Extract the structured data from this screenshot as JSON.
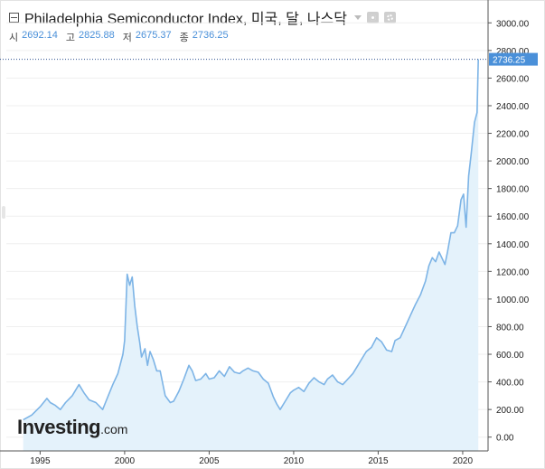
{
  "header": {
    "title": "Philadelphia Semiconductor Index, 미국, 달, 나스닥",
    "ohlc": [
      {
        "label": "시",
        "value": "2692.14"
      },
      {
        "label": "고",
        "value": "2825.88"
      },
      {
        "label": "저",
        "value": "2675.37"
      },
      {
        "label": "종",
        "value": "2736.25"
      }
    ]
  },
  "logo": {
    "main": "Investing",
    "suffix": ".com"
  },
  "colors": {
    "line": "#7db4e6",
    "fill": "#e4f2fb",
    "last_price_bg": "#4a90d9",
    "last_price_line": "#2b4f8e",
    "axis": "#555555",
    "grid": "#efefef"
  },
  "chart_data": {
    "type": "area",
    "ylim": [
      -100,
      3100
    ],
    "xlim": [
      1993,
      2021.5
    ],
    "y_ticks": [
      0,
      200,
      400,
      600,
      800,
      1000,
      1200,
      1400,
      1600,
      1800,
      2000,
      2200,
      2400,
      2600,
      2800,
      3000
    ],
    "y_tick_labels": [
      "0.00",
      "200.00",
      "400.00",
      "600.00",
      "800.00",
      "1000.00",
      "1200.00",
      "1400.00",
      "1600.00",
      "1800.00",
      "2000.00",
      "2200.00",
      "2400.00",
      "2600.00",
      "2800.00",
      "3000.00"
    ],
    "x_ticks": [
      1995,
      2000,
      2005,
      2010,
      2015,
      2020
    ],
    "x_tick_labels": [
      "1995",
      "2000",
      "2005",
      "2010",
      "2015",
      "2020"
    ],
    "last_price": 2736.25,
    "last_price_label": "2736.25",
    "series": [
      {
        "x": [
          1994.0,
          1994.5,
          1995.0,
          1995.4,
          1995.6,
          1995.9,
          1996.2,
          1996.5,
          1996.9,
          1997.3,
          1997.6,
          1997.9,
          1998.3,
          1998.7,
          1998.9,
          1999.3,
          1999.6,
          1999.9,
          2000.0,
          2000.15,
          2000.3,
          2000.45,
          2000.6,
          2000.75,
          2000.9,
          2001.0,
          2001.2,
          2001.35,
          2001.5,
          2001.7,
          2001.9,
          2002.1,
          2002.4,
          2002.7,
          2002.9,
          2003.2,
          2003.5,
          2003.8,
          2004.0,
          2004.2,
          2004.5,
          2004.8,
          2005.0,
          2005.3,
          2005.6,
          2005.9,
          2006.2,
          2006.5,
          2006.8,
          2007.0,
          2007.3,
          2007.6,
          2007.9,
          2008.2,
          2008.5,
          2008.8,
          2009.0,
          2009.2,
          2009.5,
          2009.8,
          2010.0,
          2010.3,
          2010.6,
          2010.9,
          2011.2,
          2011.5,
          2011.8,
          2012.0,
          2012.3,
          2012.6,
          2012.9,
          2013.2,
          2013.5,
          2013.8,
          2014.0,
          2014.3,
          2014.6,
          2014.9,
          2015.2,
          2015.5,
          2015.8,
          2016.0,
          2016.3,
          2016.6,
          2016.9,
          2017.2,
          2017.5,
          2017.8,
          2018.0,
          2018.2,
          2018.4,
          2018.6,
          2018.8,
          2018.95,
          2019.1,
          2019.3,
          2019.5,
          2019.7,
          2019.9,
          2020.05,
          2020.2,
          2020.35,
          2020.5,
          2020.7,
          2020.85,
          2020.92
        ],
        "y": [
          125,
          160,
          220,
          280,
          250,
          230,
          200,
          250,
          300,
          380,
          320,
          270,
          250,
          200,
          260,
          380,
          460,
          600,
          700,
          1180,
          1100,
          1160,
          950,
          800,
          680,
          580,
          640,
          520,
          620,
          560,
          480,
          480,
          300,
          250,
          260,
          330,
          420,
          520,
          480,
          410,
          420,
          460,
          420,
          430,
          480,
          440,
          510,
          470,
          460,
          480,
          500,
          480,
          470,
          420,
          390,
          290,
          240,
          200,
          260,
          320,
          340,
          360,
          330,
          390,
          430,
          400,
          380,
          420,
          450,
          400,
          380,
          420,
          460,
          520,
          560,
          620,
          650,
          720,
          690,
          630,
          620,
          700,
          720,
          800,
          880,
          960,
          1030,
          1130,
          1240,
          1300,
          1270,
          1340,
          1290,
          1250,
          1340,
          1480,
          1480,
          1530,
          1720,
          1760,
          1520,
          1890,
          2050,
          2280,
          2350,
          2736
        ]
      }
    ]
  }
}
